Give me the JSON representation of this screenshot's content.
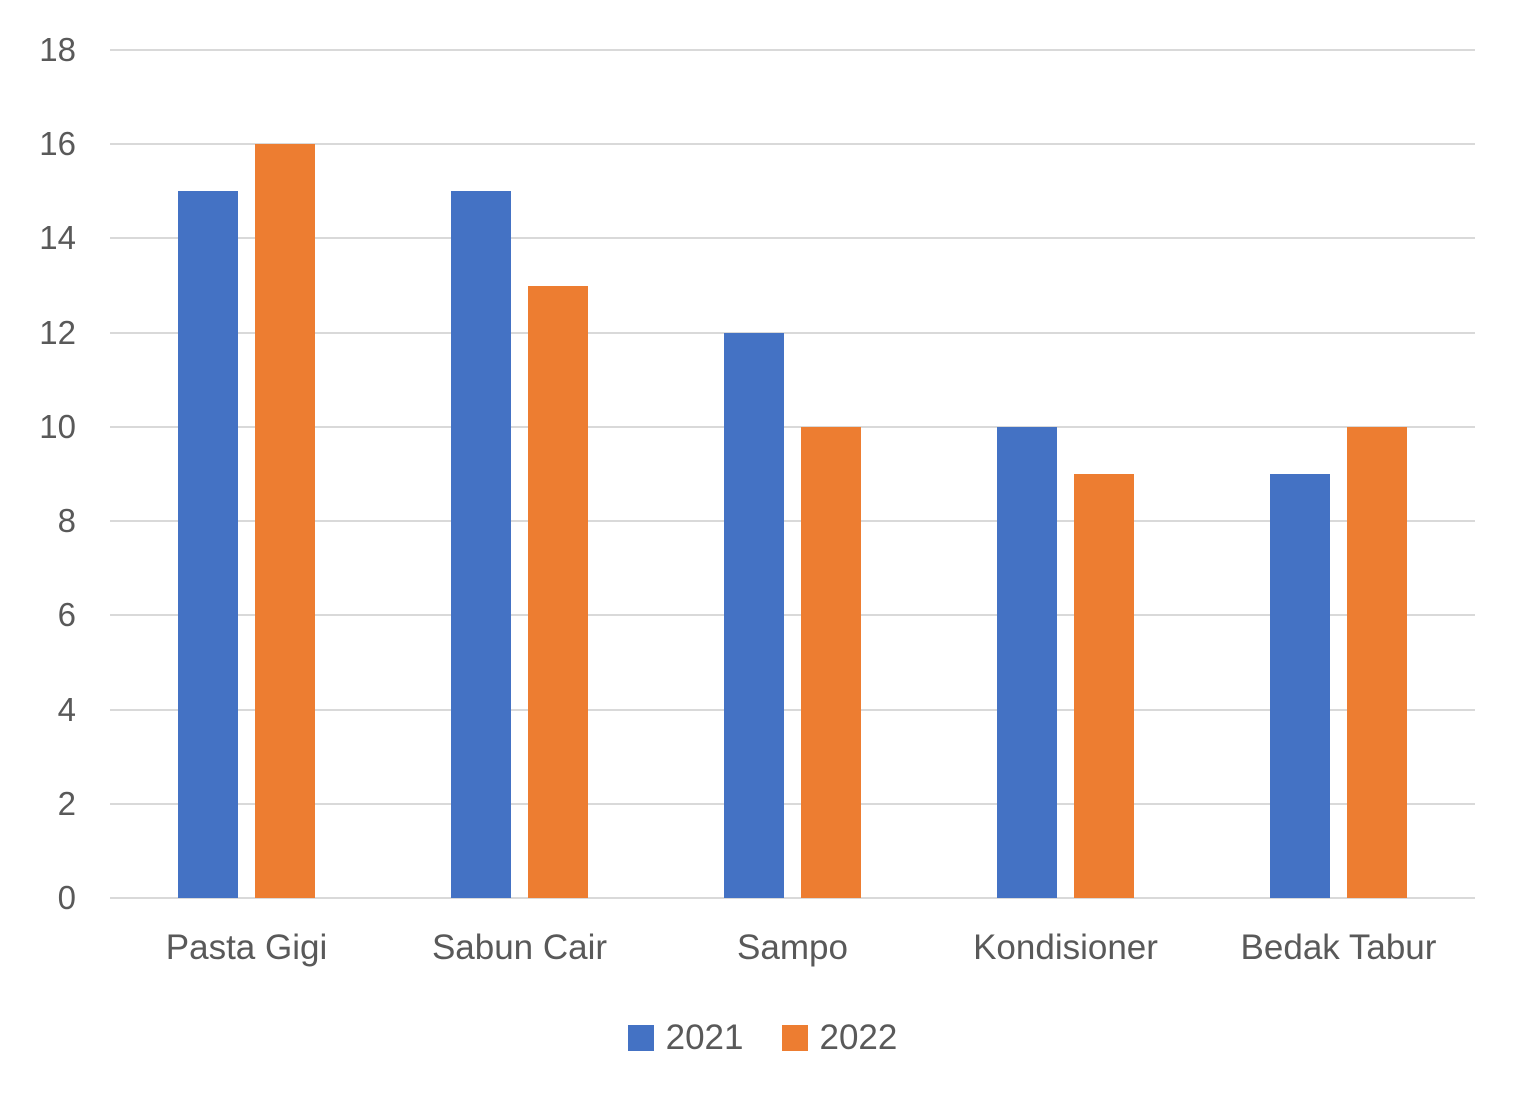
{
  "chart_data": {
    "type": "bar",
    "title": "",
    "xlabel": "",
    "ylabel": "",
    "categories": [
      "Pasta Gigi",
      "Sabun Cair",
      "Sampo",
      "Kondisioner",
      "Bedak Tabur"
    ],
    "series": [
      {
        "name": "2021",
        "color": "#4472C4",
        "values": [
          15,
          15,
          12,
          10,
          9
        ]
      },
      {
        "name": "2022",
        "color": "#ED7D31",
        "values": [
          16,
          13,
          10,
          9,
          10
        ]
      }
    ],
    "ylim": [
      0,
      18
    ],
    "yticks": [
      0,
      2,
      4,
      6,
      8,
      10,
      12,
      14,
      16,
      18
    ],
    "grid": true,
    "legend_position": "bottom",
    "colors": {
      "gridline": "#D9D9D9",
      "text": "#595959",
      "background": "#FFFFFF"
    }
  }
}
